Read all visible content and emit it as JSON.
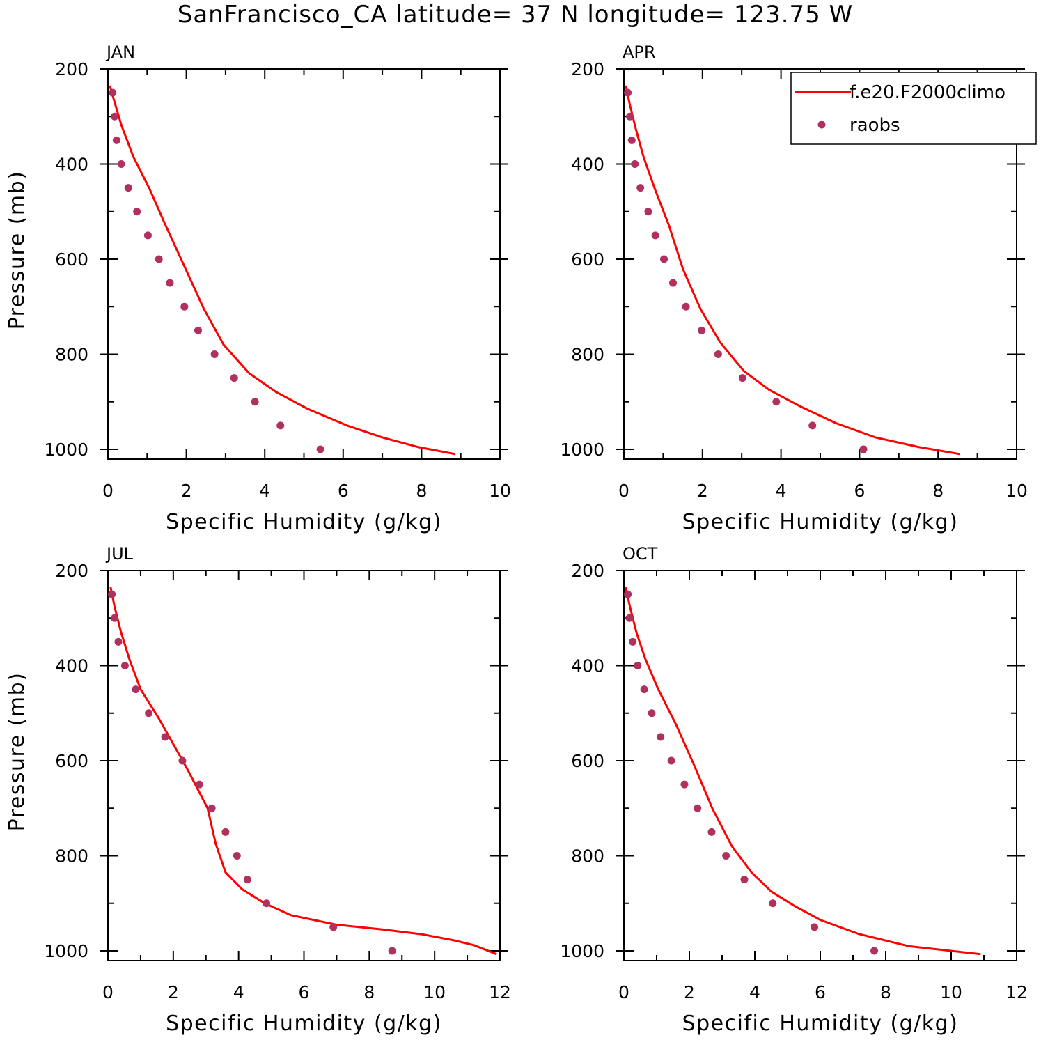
{
  "figure": {
    "title": "SanFrancisco_CA  latitude= 37 N longitude= 123.75 W"
  },
  "legend": {
    "model_label": "f.e20.F2000climo",
    "obs_label": "raobs"
  },
  "colors": {
    "model_line": "#ff0000",
    "obs_marker": "#b03060",
    "axes": "#000000"
  },
  "chart_data": [
    {
      "type": "line",
      "panel": "JAN",
      "xlabel": "Specific Humidity (g/kg)",
      "ylabel": "Pressure (mb)",
      "xlim": [
        0,
        10
      ],
      "ylim": [
        200,
        1020
      ],
      "y_inverted": true,
      "xticks": [
        0,
        2,
        4,
        6,
        8,
        10
      ],
      "yticks": [
        200,
        400,
        600,
        800,
        1000
      ],
      "legend": false,
      "series": [
        {
          "key": "model",
          "style": "line",
          "x": [
            0.05,
            0.17,
            0.35,
            0.65,
            1.05,
            1.45,
            1.95,
            2.45,
            2.95,
            3.6,
            4.3,
            5.1,
            6.1,
            7.0,
            7.9,
            8.85
          ],
          "y": [
            235,
            270,
            320,
            385,
            450,
            525,
            615,
            705,
            780,
            840,
            880,
            915,
            950,
            975,
            995,
            1010
          ]
        },
        {
          "key": "obs",
          "style": "scatter",
          "x": [
            0.12,
            0.17,
            0.22,
            0.34,
            0.52,
            0.74,
            1.02,
            1.3,
            1.58,
            1.95,
            2.3,
            2.72,
            3.22,
            3.75,
            4.4,
            5.42
          ],
          "y": [
            250,
            300,
            350,
            400,
            450,
            500,
            550,
            600,
            650,
            700,
            750,
            800,
            850,
            900,
            950,
            1000
          ]
        }
      ]
    },
    {
      "type": "line",
      "panel": "APR",
      "xlabel": "Specific Humidity (g/kg)",
      "ylabel": "",
      "xlim": [
        0,
        10
      ],
      "ylim": [
        200,
        1020
      ],
      "y_inverted": true,
      "xticks": [
        0,
        2,
        4,
        6,
        8,
        10
      ],
      "yticks": [
        200,
        400,
        600,
        800,
        1000
      ],
      "legend": true,
      "legend_position": "top-right",
      "series": [
        {
          "key": "model",
          "style": "line",
          "x": [
            0.05,
            0.15,
            0.3,
            0.5,
            0.8,
            1.15,
            1.5,
            1.95,
            2.45,
            3.05,
            3.7,
            4.5,
            5.4,
            6.4,
            7.5,
            8.55
          ],
          "y": [
            235,
            275,
            325,
            385,
            455,
            530,
            620,
            705,
            775,
            835,
            875,
            910,
            945,
            975,
            995,
            1010
          ]
        },
        {
          "key": "obs",
          "style": "scatter",
          "x": [
            0.1,
            0.15,
            0.2,
            0.28,
            0.42,
            0.62,
            0.8,
            1.02,
            1.25,
            1.58,
            1.98,
            2.4,
            3.02,
            3.88,
            4.8,
            6.1
          ],
          "y": [
            250,
            300,
            350,
            400,
            450,
            500,
            550,
            600,
            650,
            700,
            750,
            800,
            850,
            900,
            950,
            1000
          ]
        }
      ]
    },
    {
      "type": "line",
      "panel": "JUL",
      "xlabel": "Specific Humidity (g/kg)",
      "ylabel": "Pressure (mb)",
      "xlim": [
        0,
        12
      ],
      "ylim": [
        200,
        1020
      ],
      "y_inverted": true,
      "xticks": [
        0,
        2,
        4,
        6,
        8,
        10,
        12
      ],
      "yticks": [
        200,
        400,
        600,
        800,
        1000
      ],
      "legend": false,
      "series": [
        {
          "key": "model",
          "style": "line",
          "x": [
            0.08,
            0.2,
            0.4,
            0.65,
            1.0,
            1.55,
            2.0,
            2.45,
            2.75,
            3.05,
            3.3,
            3.6,
            4.1,
            4.8,
            5.6,
            7.0,
            8.4,
            9.6,
            10.6,
            11.2,
            11.9
          ],
          "y": [
            235,
            275,
            330,
            385,
            450,
            510,
            565,
            620,
            660,
            700,
            775,
            835,
            870,
            900,
            925,
            945,
            955,
            965,
            978,
            988,
            1007
          ]
        },
        {
          "key": "obs",
          "style": "scatter",
          "x": [
            0.12,
            0.2,
            0.32,
            0.52,
            0.85,
            1.25,
            1.75,
            2.28,
            2.8,
            3.18,
            3.6,
            3.95,
            4.27,
            4.85,
            6.9,
            8.7
          ],
          "y": [
            250,
            300,
            350,
            400,
            450,
            500,
            550,
            600,
            650,
            700,
            750,
            800,
            850,
            900,
            950,
            1000
          ]
        }
      ]
    },
    {
      "type": "line",
      "panel": "OCT",
      "xlabel": "Specific Humidity (g/kg)",
      "ylabel": "",
      "xlim": [
        0,
        12
      ],
      "ylim": [
        200,
        1020
      ],
      "y_inverted": true,
      "xticks": [
        0,
        2,
        4,
        6,
        8,
        10,
        12
      ],
      "yticks": [
        200,
        400,
        600,
        800,
        1000
      ],
      "legend": false,
      "series": [
        {
          "key": "model",
          "style": "line",
          "x": [
            0.05,
            0.18,
            0.38,
            0.65,
            1.05,
            1.6,
            2.15,
            2.7,
            3.3,
            3.9,
            4.5,
            5.2,
            6.0,
            7.2,
            8.7,
            10.9
          ],
          "y": [
            235,
            275,
            330,
            385,
            450,
            525,
            610,
            700,
            780,
            835,
            875,
            905,
            935,
            965,
            990,
            1007
          ]
        },
        {
          "key": "obs",
          "style": "scatter",
          "x": [
            0.12,
            0.17,
            0.27,
            0.42,
            0.62,
            0.85,
            1.12,
            1.45,
            1.85,
            2.25,
            2.68,
            3.12,
            3.68,
            4.55,
            5.82,
            7.65
          ],
          "y": [
            250,
            300,
            350,
            400,
            450,
            500,
            550,
            600,
            650,
            700,
            750,
            800,
            850,
            900,
            950,
            1000
          ]
        }
      ]
    }
  ]
}
